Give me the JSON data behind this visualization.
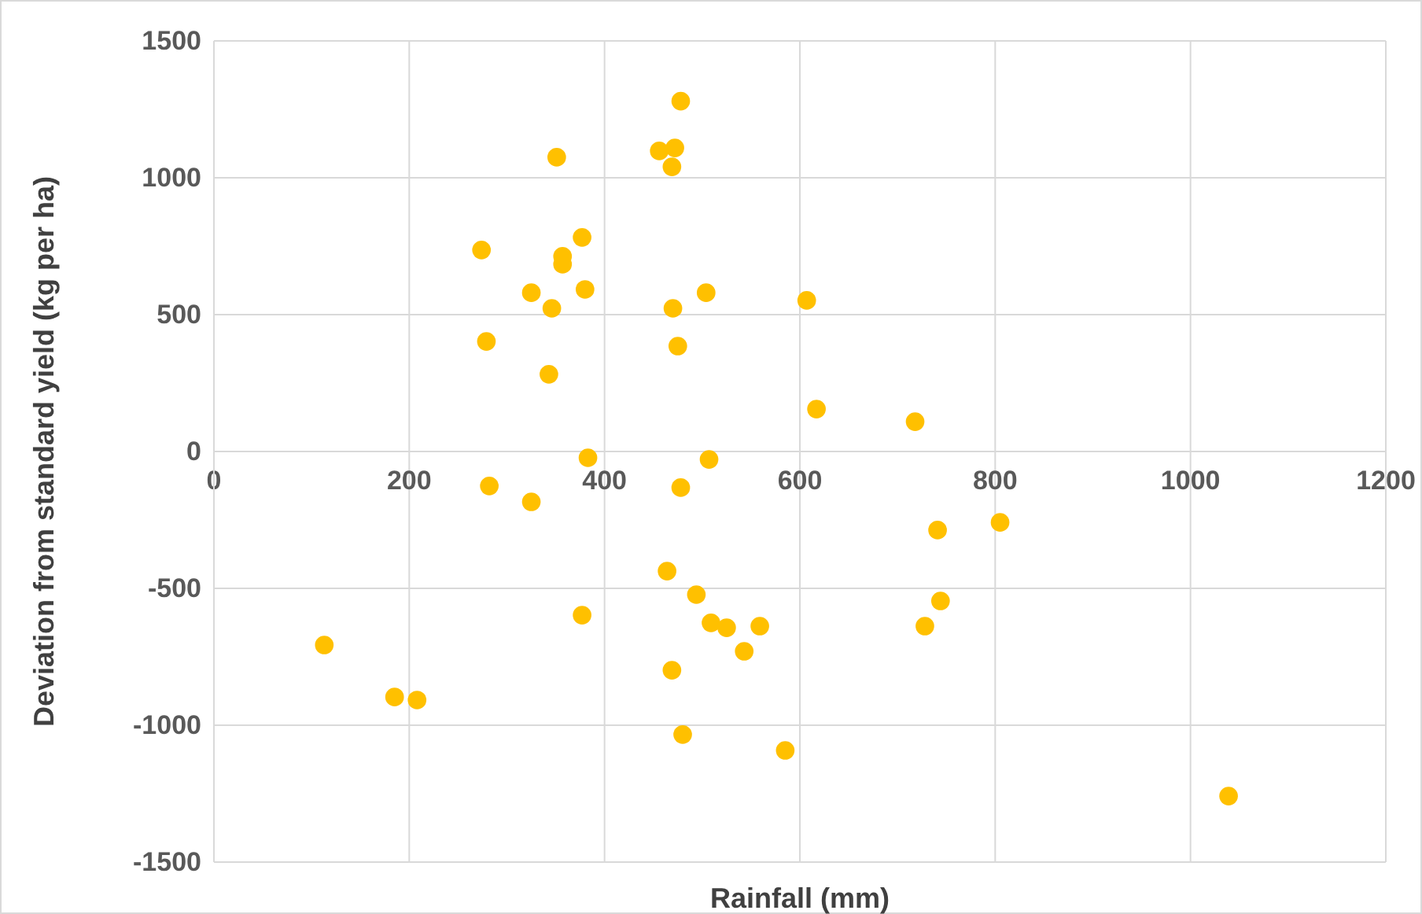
{
  "chart_data": {
    "type": "scatter",
    "xlabel": "Rainfall (mm)",
    "ylabel": "Deviation from standard yield (kg per ha)",
    "xlim": [
      0,
      1200
    ],
    "xticks": [
      0,
      200,
      400,
      600,
      800,
      1000,
      1200
    ],
    "ylim": [
      -1500,
      1500
    ],
    "yticks": [
      -1500,
      -1000,
      -500,
      0,
      500,
      1000,
      1500
    ],
    "grid": true,
    "marker": "circle",
    "series": [
      {
        "color": "#ffc000",
        "x": [
          478,
          351,
          456,
          472,
          469,
          274,
          377,
          357,
          357,
          325,
          380,
          346,
          470,
          504,
          607,
          279,
          475,
          343,
          617,
          718,
          383,
          507,
          282,
          325,
          478,
          741,
          805,
          464,
          494,
          744,
          509,
          525,
          559,
          728,
          377,
          113,
          543,
          469,
          185,
          208,
          480,
          585,
          1039
        ],
        "values": [
          1280,
          1075,
          1098,
          1109,
          1040,
          736,
          782,
          713,
          684,
          580,
          592,
          523,
          523,
          580,
          552,
          402,
          385,
          282,
          155,
          109,
          -23,
          -29,
          -126,
          -184,
          -132,
          -287,
          -259,
          -437,
          -523,
          -546,
          -626,
          -644,
          -638,
          -638,
          -598,
          -707,
          -730,
          -799,
          -897,
          -908,
          -1034,
          -1092,
          -1259
        ]
      }
    ]
  }
}
